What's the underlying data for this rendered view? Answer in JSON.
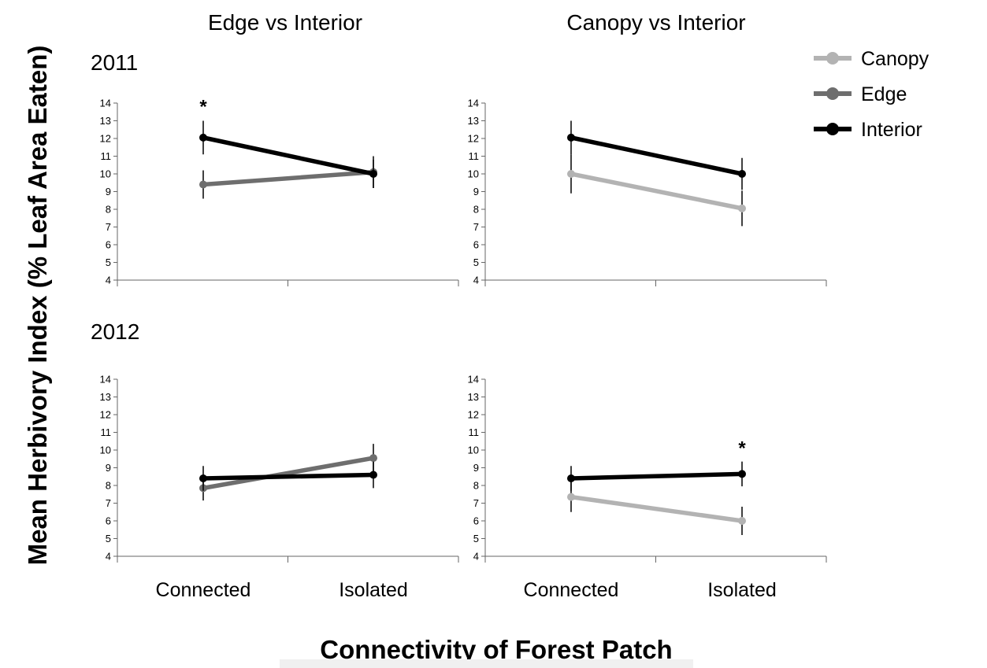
{
  "figure": {
    "ylabel": "Mean Herbivory Index  (% Leaf Area Eaten)",
    "xlabel": "Connectivity of Forest Patch",
    "column_titles": [
      "Edge vs Interior",
      "Canopy vs Interior"
    ],
    "row_labels": [
      "2011",
      "2012"
    ],
    "legend": [
      {
        "name": "Canopy",
        "color": "#b3b3b3"
      },
      {
        "name": "Edge",
        "color": "#6e6e6e"
      },
      {
        "name": "Interior",
        "color": "#000000"
      }
    ]
  },
  "chart_data": [
    {
      "type": "line",
      "year": "2011",
      "panel": "Edge vs Interior",
      "categories": [
        "Connected",
        "Isolated"
      ],
      "ylim": [
        4,
        14
      ],
      "yticks": [
        4,
        5,
        6,
        7,
        8,
        9,
        10,
        11,
        12,
        13,
        14
      ],
      "series": [
        {
          "name": "Edge",
          "color": "#6e6e6e",
          "values": [
            9.4,
            10.1
          ],
          "err": [
            0.8,
            0.9
          ]
        },
        {
          "name": "Interior",
          "color": "#000000",
          "values": [
            12.05,
            10.0
          ],
          "err": [
            0.95,
            0.8
          ]
        }
      ],
      "annotations": [
        {
          "text": "*",
          "category": "Connected",
          "y": 13.9
        }
      ]
    },
    {
      "type": "line",
      "year": "2011",
      "panel": "Canopy vs Interior",
      "categories": [
        "Connected",
        "Isolated"
      ],
      "ylim": [
        4,
        14
      ],
      "yticks": [
        4,
        5,
        6,
        7,
        8,
        9,
        10,
        11,
        12,
        13,
        14
      ],
      "series": [
        {
          "name": "Canopy",
          "color": "#b3b3b3",
          "values": [
            10.0,
            8.05
          ],
          "err": [
            1.1,
            1.0
          ]
        },
        {
          "name": "Interior",
          "color": "#000000",
          "values": [
            12.05,
            10.0
          ],
          "err": [
            0.95,
            0.9
          ]
        }
      ],
      "annotations": []
    },
    {
      "type": "line",
      "year": "2012",
      "panel": "Edge vs Interior",
      "categories": [
        "Connected",
        "Isolated"
      ],
      "ylim": [
        4,
        14
      ],
      "yticks": [
        4,
        5,
        6,
        7,
        8,
        9,
        10,
        11,
        12,
        13,
        14
      ],
      "series": [
        {
          "name": "Edge",
          "color": "#6e6e6e",
          "values": [
            7.85,
            9.55
          ],
          "err": [
            0.7,
            0.8
          ]
        },
        {
          "name": "Interior",
          "color": "#000000",
          "values": [
            8.4,
            8.6
          ],
          "err": [
            0.7,
            0.75
          ]
        }
      ],
      "annotations": []
    },
    {
      "type": "line",
      "year": "2012",
      "panel": "Canopy vs Interior",
      "categories": [
        "Connected",
        "Isolated"
      ],
      "ylim": [
        4,
        14
      ],
      "yticks": [
        4,
        5,
        6,
        7,
        8,
        9,
        10,
        11,
        12,
        13,
        14
      ],
      "series": [
        {
          "name": "Canopy",
          "color": "#b3b3b3",
          "values": [
            7.35,
            6.0
          ],
          "err": [
            0.85,
            0.8
          ]
        },
        {
          "name": "Interior",
          "color": "#000000",
          "values": [
            8.4,
            8.65
          ],
          "err": [
            0.7,
            0.7
          ]
        }
      ],
      "annotations": [
        {
          "text": "*",
          "category": "Isolated",
          "y": 10.2
        }
      ]
    }
  ]
}
